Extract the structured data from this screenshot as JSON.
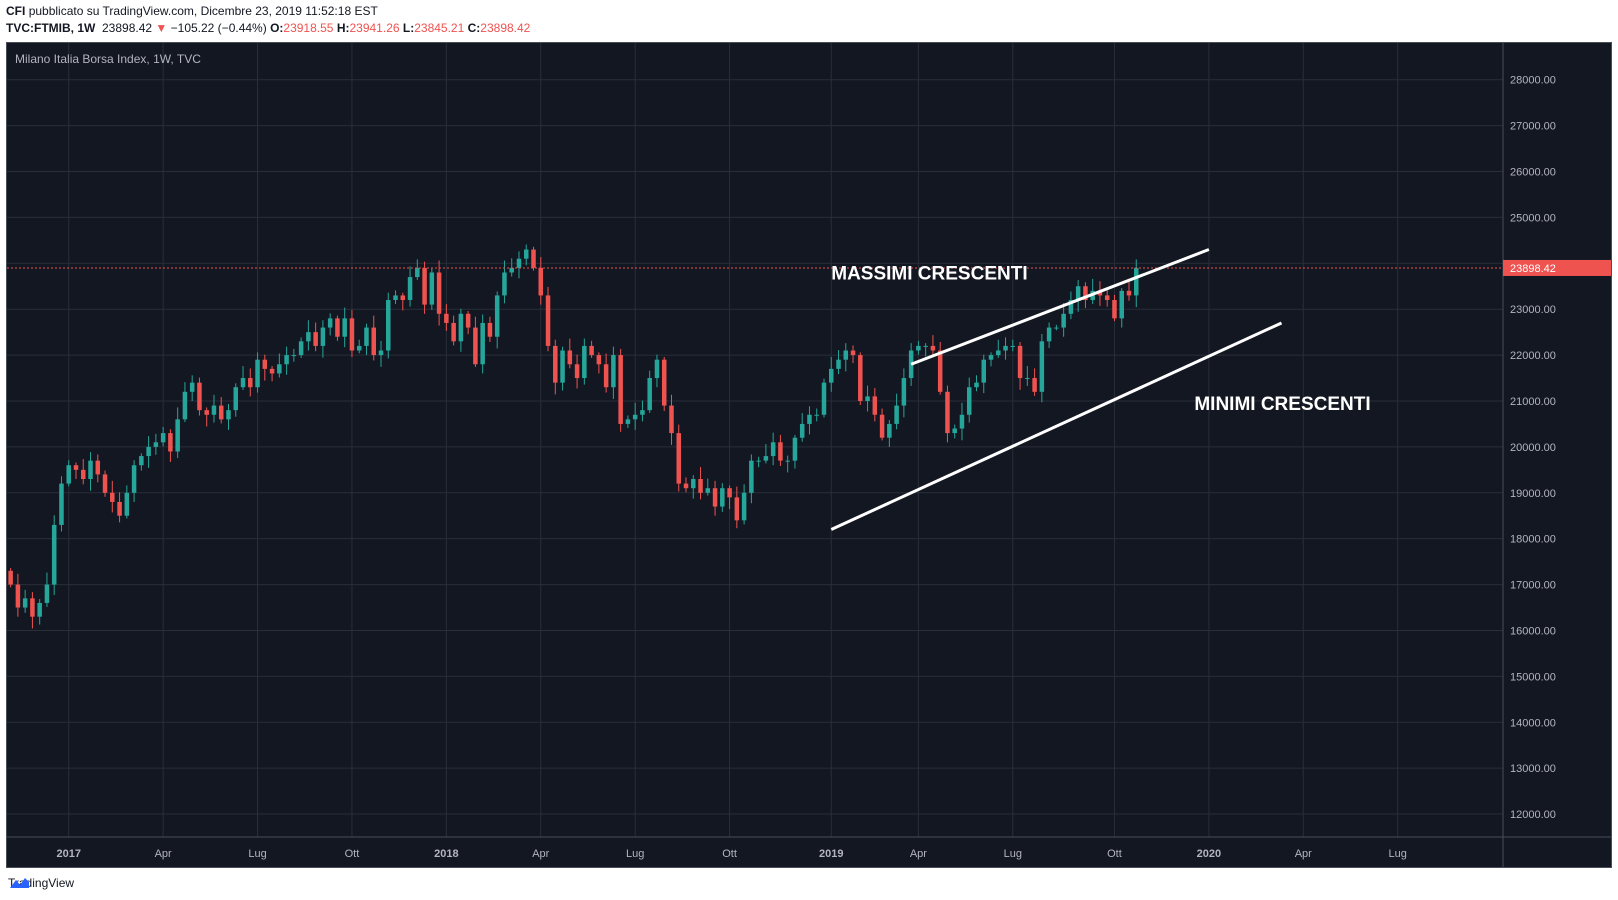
{
  "header": {
    "publisher": "CFI",
    "published_text": "pubblicato su TradingView.com, Dicembre 23, 2019 11:52:18 EST",
    "ticker": "TVC:FTMIB, 1W",
    "last": "23898.42",
    "arrow": "▼",
    "change": "−105.22 (−0.44%)",
    "o_label": "O:",
    "o_value": "23918.55",
    "h_label": "H:",
    "h_value": "23941.26",
    "l_label": "L:",
    "l_value": "23845.21",
    "c_label": "C:",
    "c_value": "23898.42"
  },
  "footer": {
    "brand": "TradingView"
  },
  "colors": {
    "up": "#26a69a",
    "down": "#ef5350",
    "background": "#131722",
    "grid": "#2a2e39",
    "text": "#b2b5be",
    "lines": "#ffffff"
  },
  "chart_data": {
    "type": "candlestick",
    "title": "Milano Italia Borsa Index, 1W, TVC",
    "ylim": [
      11500,
      28800
    ],
    "y_ticks": [
      "28000.00",
      "27000.00",
      "26000.00",
      "25000.00",
      "24000.00",
      "23000.00",
      "22000.00",
      "21000.00",
      "20000.00",
      "19000.00",
      "18000.00",
      "17000.00",
      "16000.00",
      "15000.00",
      "14000.00",
      "13000.00",
      "12000.00"
    ],
    "x_ticks": [
      {
        "label": "2017",
        "week": 8,
        "bold": true
      },
      {
        "label": "Apr",
        "week": 21,
        "bold": false
      },
      {
        "label": "Lug",
        "week": 34,
        "bold": false
      },
      {
        "label": "Ott",
        "week": 47,
        "bold": false
      },
      {
        "label": "2018",
        "week": 60,
        "bold": true
      },
      {
        "label": "Apr",
        "week": 73,
        "bold": false
      },
      {
        "label": "Lug",
        "week": 86,
        "bold": false
      },
      {
        "label": "Ott",
        "week": 99,
        "bold": false
      },
      {
        "label": "2019",
        "week": 113,
        "bold": true
      },
      {
        "label": "Apr",
        "week": 125,
        "bold": false
      },
      {
        "label": "Lug",
        "week": 138,
        "bold": false
      },
      {
        "label": "Ott",
        "week": 152,
        "bold": false
      },
      {
        "label": "2020",
        "week": 165,
        "bold": true
      },
      {
        "label": "Apr",
        "week": 178,
        "bold": false
      },
      {
        "label": "Lug",
        "week": 191,
        "bold": false
      }
    ],
    "last_price": 23898.42,
    "last_price_label": "23898.42",
    "weeks_total": 206,
    "closes": [
      17000,
      16500,
      16700,
      16300,
      16600,
      17000,
      18300,
      19200,
      19600,
      19500,
      19300,
      19700,
      19400,
      19000,
      18800,
      18500,
      19000,
      19600,
      19800,
      20000,
      20100,
      20300,
      19900,
      20600,
      21200,
      21400,
      20800,
      20700,
      20900,
      20600,
      20800,
      21300,
      21500,
      21300,
      21900,
      21700,
      21600,
      21800,
      22000,
      22000,
      22300,
      22500,
      22200,
      22600,
      22800,
      22400,
      22800,
      22100,
      22200,
      22600,
      22000,
      22100,
      23200,
      23300,
      23200,
      23700,
      23900,
      23100,
      23800,
      22900,
      22700,
      22300,
      22900,
      22600,
      21800,
      22700,
      22400,
      23300,
      23800,
      23900,
      24100,
      24300,
      23900,
      23300,
      22200,
      21400,
      22100,
      21800,
      21500,
      22200,
      22000,
      21800,
      21300,
      22000,
      20500,
      20600,
      20700,
      20800,
      21500,
      21900,
      20900,
      20300,
      19200,
      19100,
      19300,
      19000,
      19100,
      18700,
      19100,
      18900,
      18400,
      19000,
      19700,
      19700,
      19800,
      20100,
      19700,
      19700,
      20200,
      20500,
      20700,
      20700,
      21400,
      21700,
      21900,
      22100,
      22000,
      21000,
      21100,
      20700,
      20200,
      20500,
      20900,
      21500,
      22100,
      22200,
      22200,
      22100,
      21200,
      20300,
      20400,
      20700,
      21300,
      21400,
      21900,
      22000,
      22100,
      22200,
      22200,
      21500,
      21500,
      21200,
      22300,
      22600,
      22600,
      22900,
      23200,
      23500,
      23200,
      23400,
      23300,
      23200,
      22800,
      23400,
      23300,
      23900
    ]
  },
  "annotations": {
    "upper_label": "MASSIMI CRESCENTI",
    "lower_label": "MINIMI CRESCENTI"
  }
}
